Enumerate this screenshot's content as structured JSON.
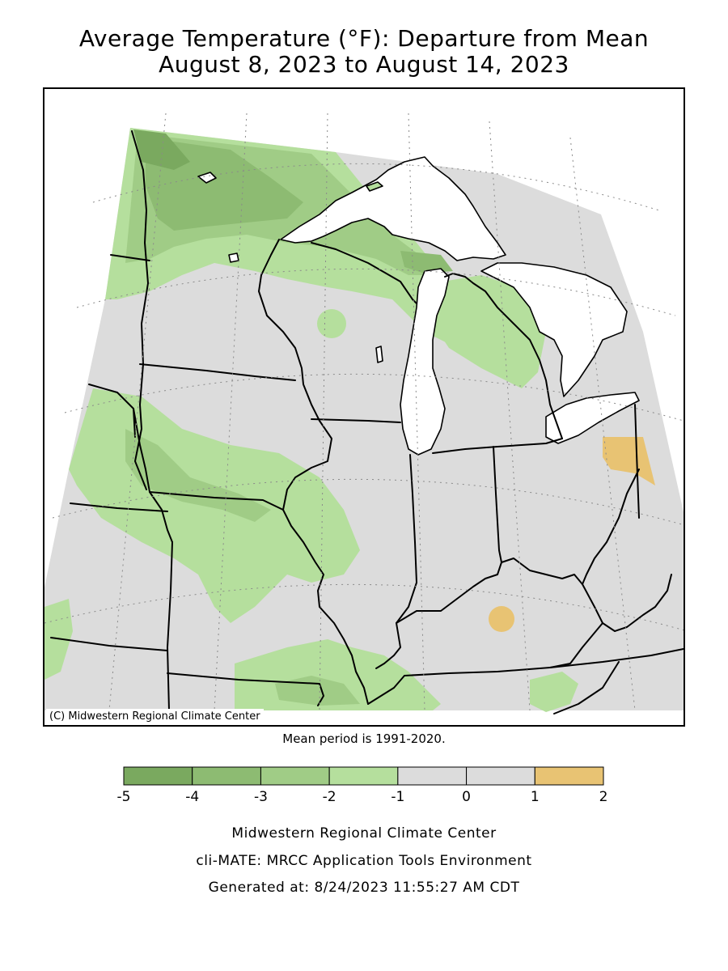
{
  "title": {
    "line1": "Average Temperature (°F): Departure from Mean",
    "line2": "August 8, 2023 to August 14, 2023"
  },
  "map": {
    "copyright": "(C) Midwestern Regional Climate Center",
    "colors": {
      "n5": "#7aa95f",
      "n4": "#8dbb72",
      "n3": "#a0cc86",
      "n2": "#b5df9d",
      "neutral": "#dcdcdc",
      "p1": "#e8c373",
      "water": "#ffffff",
      "outside": "#ffffff"
    }
  },
  "mean_period": "Mean period is 1991-2020.",
  "legend": {
    "ticks": [
      "-5",
      "-4",
      "-3",
      "-2",
      "-1",
      "0",
      "1",
      "2"
    ],
    "colors": [
      "#7aa95f",
      "#8dbb72",
      "#a0cc86",
      "#b5df9d",
      "#dcdcdc",
      "#dcdcdc",
      "#e8c373"
    ]
  },
  "credits": {
    "line1": "Midwestern Regional Climate Center",
    "line2": "cli-MATE: MRCC Application Tools Environment",
    "line3": "Generated at: 8/24/2023 11:55:27 AM CDT"
  }
}
